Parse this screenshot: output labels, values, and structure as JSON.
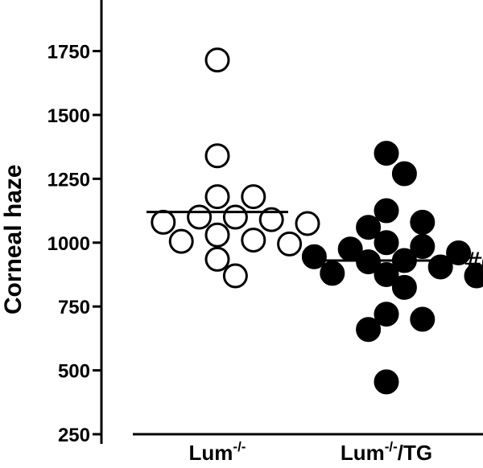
{
  "chart_data": {
    "type": "scatter",
    "ylabel": "Corneal haze",
    "ylim": [
      250,
      1950
    ],
    "yticks": [
      250,
      500,
      750,
      1000,
      1250,
      1500,
      1750
    ],
    "ytick_labels": [
      "250",
      "500",
      "750",
      "1000",
      "1250",
      "1500",
      "1750"
    ],
    "categories": [
      {
        "base": "Lum",
        "sup": "-/-",
        "suffix": ""
      },
      {
        "base": "Lum",
        "sup": "-/-",
        "suffix": "/TG"
      }
    ],
    "series": [
      {
        "marker": "open-circle",
        "values": [
          1715,
          1340,
          1180,
          1180,
          1100,
          1100,
          1090,
          1080,
          1075,
          1030,
          1010,
          1005,
          995,
          935,
          870
        ],
        "mean": 1120
      },
      {
        "marker": "filled-circle",
        "values": [
          1350,
          1270,
          1125,
          1080,
          1060,
          1000,
          985,
          975,
          960,
          945,
          930,
          925,
          920,
          905,
          880,
          875,
          870,
          825,
          720,
          700,
          660,
          455
        ],
        "mean": 930,
        "annotation": "#"
      }
    ],
    "grid": false,
    "legend": "none"
  }
}
